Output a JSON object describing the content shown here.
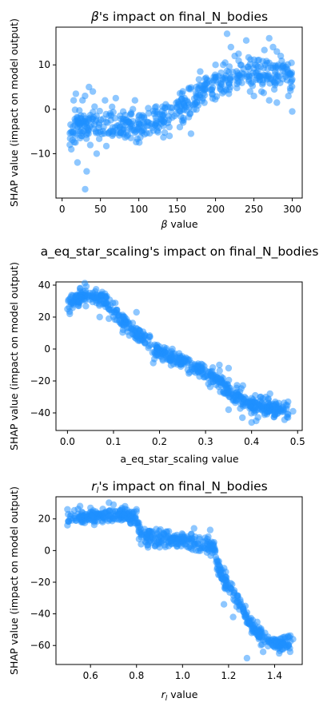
{
  "chart_data": [
    {
      "type": "scatter",
      "title_pre": "",
      "title_sym": "β",
      "title_sub": "",
      "title_post": "'s impact on final_N_bodies",
      "xlabel_sym": "β",
      "xlabel_sub": "",
      "xlabel_post": " value",
      "xlabel": "",
      "ylabel": "SHAP value (impact on model output)",
      "xlim": [
        -8,
        313
      ],
      "ylim": [
        -20,
        18.5
      ],
      "xticks": [
        0,
        50,
        100,
        150,
        200,
        250,
        300
      ],
      "yticks": [
        -10,
        0,
        10
      ],
      "color": "#1e90ff",
      "trend": [
        [
          10,
          -4
        ],
        [
          50,
          -3.5
        ],
        [
          90,
          -3.5
        ],
        [
          120,
          -2.5
        ],
        [
          150,
          0
        ],
        [
          170,
          2
        ],
        [
          190,
          4.5
        ],
        [
          220,
          7
        ],
        [
          260,
          8
        ],
        [
          300,
          8
        ]
      ],
      "points": [
        [
          10,
          -8
        ],
        [
          12,
          -9
        ],
        [
          15,
          2
        ],
        [
          18,
          3.5
        ],
        [
          20,
          -12
        ],
        [
          24,
          -2
        ],
        [
          26,
          -6
        ],
        [
          30,
          -18
        ],
        [
          32,
          -14
        ],
        [
          35,
          5
        ],
        [
          40,
          4
        ],
        [
          45,
          -10
        ],
        [
          56,
          2
        ],
        [
          70,
          2.5
        ],
        [
          95,
          2
        ],
        [
          140,
          -6
        ],
        [
          168,
          -5.5
        ],
        [
          175,
          5
        ],
        [
          180,
          8.5
        ],
        [
          200,
          10
        ],
        [
          210,
          10
        ],
        [
          215,
          17
        ],
        [
          220,
          14
        ],
        [
          225,
          12
        ],
        [
          230,
          12.5
        ],
        [
          240,
          15.5
        ],
        [
          245,
          4
        ],
        [
          250,
          3
        ],
        [
          260,
          4
        ],
        [
          265,
          10
        ],
        [
          270,
          16
        ],
        [
          275,
          14
        ],
        [
          280,
          13
        ],
        [
          285,
          12
        ],
        [
          290,
          8
        ],
        [
          295,
          3
        ],
        [
          300,
          -0.5
        ],
        [
          270,
          2
        ],
        [
          280,
          1.5
        ],
        [
          298,
          8
        ]
      ],
      "noise": 1.9,
      "count": 520,
      "seed": 11
    },
    {
      "type": "scatter",
      "title_pre": "a_eq_star_scaling's impact on final_N_bodies",
      "title_sym": "",
      "title_sub": "",
      "title_post": "",
      "xlabel_sym": "",
      "xlabel_sub": "",
      "xlabel_post": "",
      "xlabel": "a_eq_star_scaling value",
      "ylabel": "SHAP value (impact on model output)",
      "xlim": [
        -0.025,
        0.51
      ],
      "ylim": [
        -51,
        42
      ],
      "xticks": [
        0.0,
        0.1,
        0.2,
        0.3,
        0.4,
        0.5
      ],
      "yticks": [
        -40,
        -20,
        0,
        20,
        40
      ],
      "color": "#1e90ff",
      "trend": [
        [
          0.0,
          28
        ],
        [
          0.02,
          32
        ],
        [
          0.04,
          34
        ],
        [
          0.06,
          34
        ],
        [
          0.08,
          31
        ],
        [
          0.1,
          24
        ],
        [
          0.12,
          18
        ],
        [
          0.15,
          10
        ],
        [
          0.18,
          2
        ],
        [
          0.2,
          -2
        ],
        [
          0.25,
          -8
        ],
        [
          0.3,
          -15
        ],
        [
          0.33,
          -20
        ],
        [
          0.36,
          -28
        ],
        [
          0.4,
          -35
        ],
        [
          0.45,
          -37
        ],
        [
          0.48,
          -39
        ]
      ],
      "points": [
        [
          0.0,
          25
        ],
        [
          0.005,
          22
        ],
        [
          0.07,
          20
        ],
        [
          0.09,
          19
        ],
        [
          0.12,
          20
        ],
        [
          0.15,
          23
        ],
        [
          0.33,
          -10
        ],
        [
          0.35,
          -12
        ],
        [
          0.35,
          -38
        ],
        [
          0.38,
          -43
        ],
        [
          0.4,
          -46
        ],
        [
          0.41,
          -45
        ],
        [
          0.42,
          -30
        ],
        [
          0.44,
          -28
        ],
        [
          0.45,
          -41
        ],
        [
          0.47,
          -38
        ],
        [
          0.49,
          -39
        ]
      ],
      "noise": 2.6,
      "count": 620,
      "seed": 23
    },
    {
      "type": "scatter",
      "title_pre": "",
      "title_sym": "r",
      "title_sub": "l",
      "title_post": "'s impact on final_N_bodies",
      "xlabel_sym": "r",
      "xlabel_sub": "l",
      "xlabel_post": " value",
      "xlabel": "",
      "ylabel": "SHAP value (impact on model output)",
      "xlim": [
        0.45,
        1.52
      ],
      "ylim": [
        -72,
        34
      ],
      "xticks": [
        0.6,
        0.8,
        1.0,
        1.2,
        1.4
      ],
      "yticks": [
        -60,
        -40,
        -20,
        0,
        20
      ],
      "color": "#1e90ff",
      "trend": [
        [
          0.5,
          20
        ],
        [
          0.6,
          21
        ],
        [
          0.7,
          23
        ],
        [
          0.78,
          22
        ],
        [
          0.8,
          19
        ],
        [
          0.82,
          9
        ],
        [
          0.9,
          8
        ],
        [
          1.0,
          6
        ],
        [
          1.1,
          4
        ],
        [
          1.14,
          1
        ],
        [
          1.16,
          -14
        ],
        [
          1.2,
          -22
        ],
        [
          1.25,
          -34
        ],
        [
          1.3,
          -48
        ],
        [
          1.35,
          -55
        ],
        [
          1.4,
          -60
        ],
        [
          1.47,
          -58
        ]
      ],
      "points": [
        [
          0.5,
          26
        ],
        [
          0.5,
          16
        ],
        [
          0.6,
          27
        ],
        [
          0.7,
          29
        ],
        [
          0.75,
          28
        ],
        [
          0.8,
          26
        ],
        [
          0.82,
          4
        ],
        [
          0.85,
          2
        ],
        [
          1.05,
          14
        ],
        [
          1.12,
          13
        ],
        [
          1.15,
          -12
        ],
        [
          1.18,
          -34
        ],
        [
          1.22,
          -42
        ],
        [
          1.28,
          -68
        ],
        [
          1.3,
          -52
        ],
        [
          1.35,
          -64
        ],
        [
          1.42,
          -65
        ],
        [
          1.46,
          -54
        ],
        [
          1.48,
          -56
        ]
      ],
      "noise": 2.5,
      "count": 600,
      "seed": 37
    }
  ]
}
